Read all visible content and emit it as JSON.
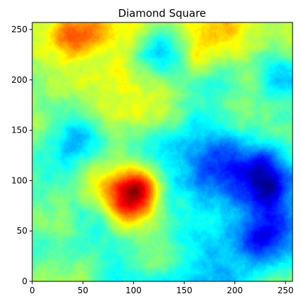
{
  "chart_data": {
    "type": "heatmap",
    "title": "Diamond Square",
    "xlabel": "",
    "ylabel": "",
    "xlim": [
      0,
      257
    ],
    "ylim": [
      0,
      257
    ],
    "x_ticks": [
      0,
      50,
      100,
      150,
      200,
      250
    ],
    "y_ticks": [
      0,
      50,
      100,
      150,
      200,
      250
    ],
    "colormap": "jet",
    "grid": false,
    "legend": "none",
    "grid_size": 257,
    "features": [
      {
        "kind": "high",
        "x": 92,
        "y": 78,
        "strength": 0.5,
        "spread": 18
      },
      {
        "kind": "high",
        "x": 108,
        "y": 92,
        "strength": 0.35,
        "spread": 14
      },
      {
        "kind": "high",
        "x": 70,
        "y": 100,
        "strength": 0.18,
        "spread": 20
      },
      {
        "kind": "high",
        "x": 40,
        "y": 240,
        "strength": 0.2,
        "spread": 18
      },
      {
        "kind": "high",
        "x": 90,
        "y": 175,
        "strength": 0.18,
        "spread": 22
      },
      {
        "kind": "high",
        "x": 120,
        "y": 20,
        "strength": 0.18,
        "spread": 20
      },
      {
        "kind": "high",
        "x": 160,
        "y": 225,
        "strength": 0.12,
        "spread": 18
      },
      {
        "kind": "low",
        "x": 128,
        "y": 228,
        "strength": 0.38,
        "spread": 22
      },
      {
        "kind": "low",
        "x": 190,
        "y": 118,
        "strength": 0.32,
        "spread": 28
      },
      {
        "kind": "low",
        "x": 232,
        "y": 102,
        "strength": 0.38,
        "spread": 22
      },
      {
        "kind": "low",
        "x": 230,
        "y": 42,
        "strength": 0.32,
        "spread": 24
      },
      {
        "kind": "low",
        "x": 245,
        "y": 200,
        "strength": 0.28,
        "spread": 18
      },
      {
        "kind": "low",
        "x": 42,
        "y": 140,
        "strength": 0.25,
        "spread": 22
      },
      {
        "kind": "low",
        "x": 175,
        "y": 200,
        "strength": 0.2,
        "spread": 20
      },
      {
        "kind": "low",
        "x": 10,
        "y": 30,
        "strength": 0.15,
        "spread": 15
      }
    ]
  }
}
